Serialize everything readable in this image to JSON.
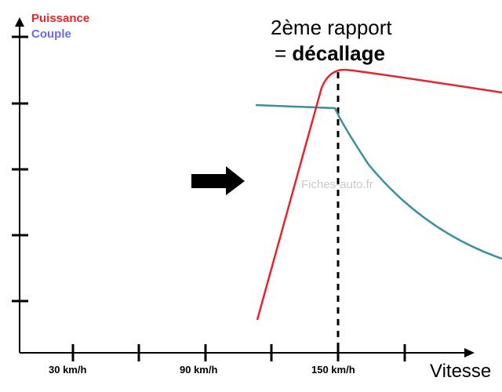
{
  "legend": {
    "power": "Puissance",
    "torque": "Couple"
  },
  "annotation": {
    "line1": "2ème rapport",
    "line2_prefix": "= ",
    "line2_bold": "décallage"
  },
  "watermark": "Fiches-auto.fr",
  "x_axis": {
    "label": "Vitesse",
    "ticks": [
      "30 km/h",
      "90 km/h",
      "150 km/h"
    ]
  },
  "colors": {
    "power": "#e8242a",
    "torque": "#3a8fa0",
    "axis": "#000000",
    "legend_torque": "#6c6ce0"
  },
  "icons": {
    "arrow": "right-arrow-icon"
  }
}
